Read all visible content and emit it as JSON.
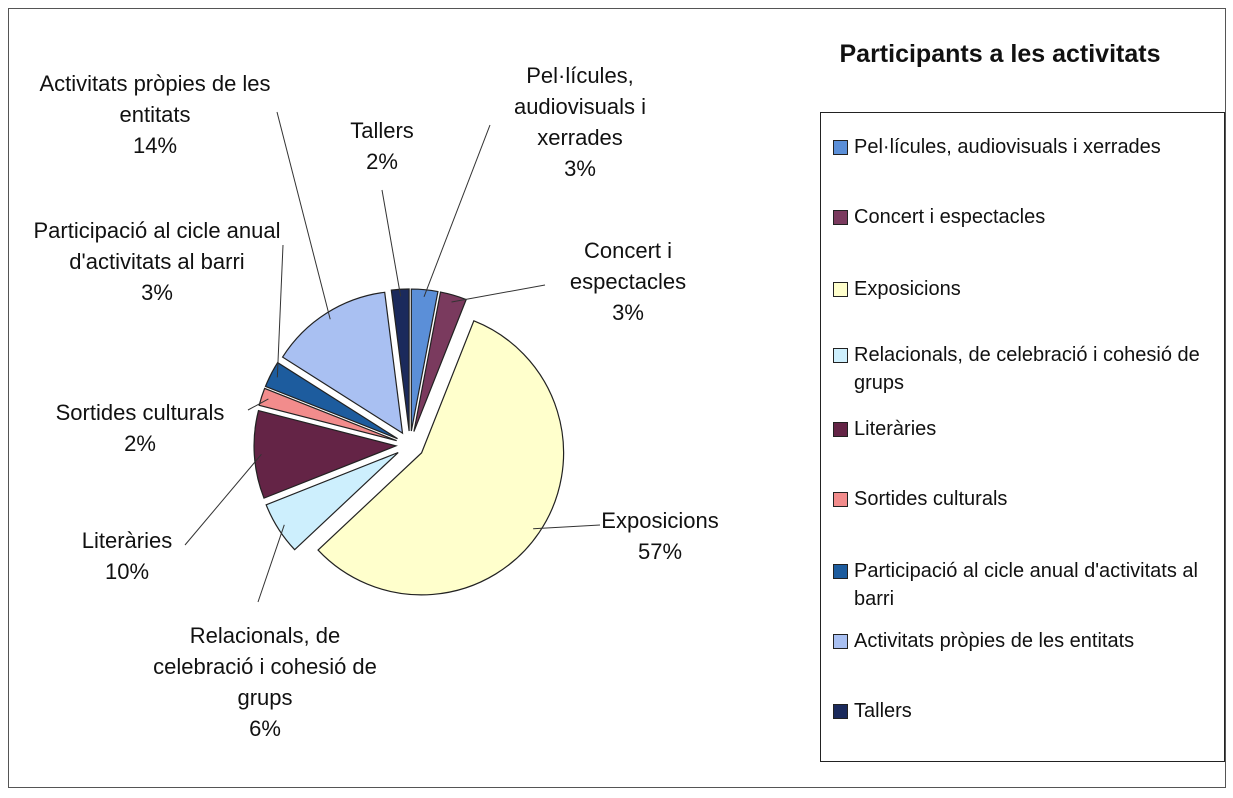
{
  "chart_data": {
    "type": "pie",
    "title": "Participants a les activitats",
    "categories": [
      "Pel·lícules, audiovisuals i xerrades",
      "Concert i espectacles",
      "Exposicions",
      "Relacionals, de celebració i cohesió de grups",
      "Literàries",
      "Sortides culturals",
      "Participació al cicle anual d'activitats al barri",
      "Activitats pròpies de les entitats",
      "Tallers"
    ],
    "values": [
      3,
      3,
      57,
      6,
      10,
      2,
      3,
      14,
      2
    ],
    "value_labels": [
      "3%",
      "3%",
      "57%",
      "6%",
      "10%",
      "2%",
      "3%",
      "14%",
      "2%"
    ],
    "colors": [
      "#5b8fd8",
      "#7a3a5e",
      "#ffffcc",
      "#cdeffd",
      "#642446",
      "#f28c8c",
      "#1d5c9e",
      "#a9c0f2",
      "#1b2a5c"
    ],
    "legend": "right"
  }
}
